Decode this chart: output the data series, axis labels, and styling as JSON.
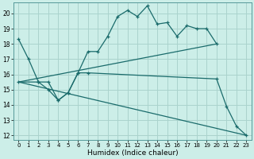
{
  "xlabel": "Humidex (Indice chaleur)",
  "bg_color": "#cceee8",
  "grid_color_major": "#aad4ce",
  "grid_color_minor": "#ddbebe",
  "line_color": "#1a6b6b",
  "xlim": [
    -0.5,
    23.5
  ],
  "ylim": [
    11.7,
    20.7
  ],
  "yticks": [
    12,
    13,
    14,
    15,
    16,
    17,
    18,
    19,
    20
  ],
  "xticks": [
    0,
    1,
    2,
    3,
    4,
    5,
    6,
    7,
    8,
    9,
    10,
    11,
    12,
    13,
    14,
    15,
    16,
    17,
    18,
    19,
    20,
    21,
    22,
    23
  ],
  "line1_x": [
    0,
    1,
    2,
    3,
    4,
    5,
    6,
    7,
    8,
    9,
    10,
    11,
    12,
    13,
    14,
    15,
    16,
    17,
    18,
    19,
    20
  ],
  "line1_y": [
    18.3,
    17.0,
    15.5,
    15.5,
    14.3,
    14.8,
    16.1,
    17.5,
    17.5,
    18.5,
    19.8,
    20.2,
    19.8,
    20.5,
    19.3,
    19.4,
    18.5,
    19.2,
    19.0,
    19.0,
    18.0
  ],
  "line2_x": [
    0,
    2,
    3,
    4,
    5,
    6,
    7,
    20,
    21,
    22,
    23
  ],
  "line2_y": [
    15.5,
    15.5,
    15.0,
    14.3,
    14.8,
    16.1,
    16.1,
    15.7,
    13.9,
    12.6,
    12.0
  ],
  "line3_x": [
    0,
    23
  ],
  "line3_y": [
    15.5,
    12.0
  ],
  "line4_x": [
    0,
    20
  ],
  "line4_y": [
    15.5,
    18.0
  ]
}
